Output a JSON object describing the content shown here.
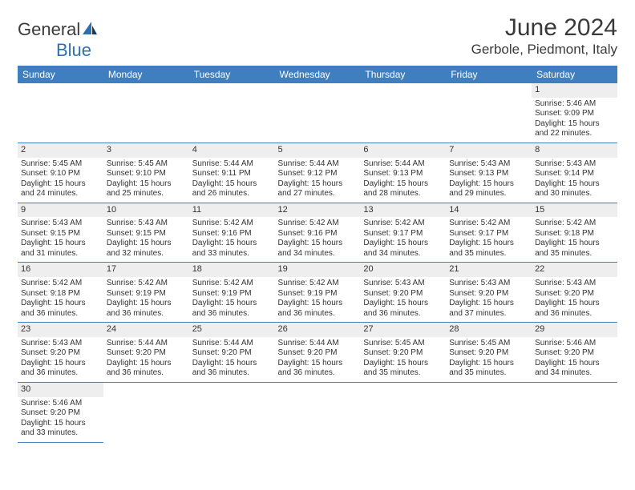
{
  "logo": {
    "textA": "General",
    "textB": "Blue"
  },
  "title": "June 2024",
  "location": "Gerbole, Piedmont, Italy",
  "colors": {
    "headerBlue": "#3f7fbf",
    "grayRow": "#eeeeee"
  },
  "dayHeaders": [
    "Sunday",
    "Monday",
    "Tuesday",
    "Wednesday",
    "Thursday",
    "Friday",
    "Saturday"
  ],
  "startOffset": 6,
  "daysInMonth": 30,
  "days": [
    {
      "n": 1,
      "sunrise": "5:46 AM",
      "sunset": "9:09 PM",
      "daylight": "15 hours and 22 minutes."
    },
    {
      "n": 2,
      "sunrise": "5:45 AM",
      "sunset": "9:10 PM",
      "daylight": "15 hours and 24 minutes."
    },
    {
      "n": 3,
      "sunrise": "5:45 AM",
      "sunset": "9:10 PM",
      "daylight": "15 hours and 25 minutes."
    },
    {
      "n": 4,
      "sunrise": "5:44 AM",
      "sunset": "9:11 PM",
      "daylight": "15 hours and 26 minutes."
    },
    {
      "n": 5,
      "sunrise": "5:44 AM",
      "sunset": "9:12 PM",
      "daylight": "15 hours and 27 minutes."
    },
    {
      "n": 6,
      "sunrise": "5:44 AM",
      "sunset": "9:13 PM",
      "daylight": "15 hours and 28 minutes."
    },
    {
      "n": 7,
      "sunrise": "5:43 AM",
      "sunset": "9:13 PM",
      "daylight": "15 hours and 29 minutes."
    },
    {
      "n": 8,
      "sunrise": "5:43 AM",
      "sunset": "9:14 PM",
      "daylight": "15 hours and 30 minutes."
    },
    {
      "n": 9,
      "sunrise": "5:43 AM",
      "sunset": "9:15 PM",
      "daylight": "15 hours and 31 minutes."
    },
    {
      "n": 10,
      "sunrise": "5:43 AM",
      "sunset": "9:15 PM",
      "daylight": "15 hours and 32 minutes."
    },
    {
      "n": 11,
      "sunrise": "5:42 AM",
      "sunset": "9:16 PM",
      "daylight": "15 hours and 33 minutes."
    },
    {
      "n": 12,
      "sunrise": "5:42 AM",
      "sunset": "9:16 PM",
      "daylight": "15 hours and 34 minutes."
    },
    {
      "n": 13,
      "sunrise": "5:42 AM",
      "sunset": "9:17 PM",
      "daylight": "15 hours and 34 minutes."
    },
    {
      "n": 14,
      "sunrise": "5:42 AM",
      "sunset": "9:17 PM",
      "daylight": "15 hours and 35 minutes."
    },
    {
      "n": 15,
      "sunrise": "5:42 AM",
      "sunset": "9:18 PM",
      "daylight": "15 hours and 35 minutes."
    },
    {
      "n": 16,
      "sunrise": "5:42 AM",
      "sunset": "9:18 PM",
      "daylight": "15 hours and 36 minutes."
    },
    {
      "n": 17,
      "sunrise": "5:42 AM",
      "sunset": "9:19 PM",
      "daylight": "15 hours and 36 minutes."
    },
    {
      "n": 18,
      "sunrise": "5:42 AM",
      "sunset": "9:19 PM",
      "daylight": "15 hours and 36 minutes."
    },
    {
      "n": 19,
      "sunrise": "5:42 AM",
      "sunset": "9:19 PM",
      "daylight": "15 hours and 36 minutes."
    },
    {
      "n": 20,
      "sunrise": "5:43 AM",
      "sunset": "9:20 PM",
      "daylight": "15 hours and 36 minutes."
    },
    {
      "n": 21,
      "sunrise": "5:43 AM",
      "sunset": "9:20 PM",
      "daylight": "15 hours and 37 minutes."
    },
    {
      "n": 22,
      "sunrise": "5:43 AM",
      "sunset": "9:20 PM",
      "daylight": "15 hours and 36 minutes."
    },
    {
      "n": 23,
      "sunrise": "5:43 AM",
      "sunset": "9:20 PM",
      "daylight": "15 hours and 36 minutes."
    },
    {
      "n": 24,
      "sunrise": "5:44 AM",
      "sunset": "9:20 PM",
      "daylight": "15 hours and 36 minutes."
    },
    {
      "n": 25,
      "sunrise": "5:44 AM",
      "sunset": "9:20 PM",
      "daylight": "15 hours and 36 minutes."
    },
    {
      "n": 26,
      "sunrise": "5:44 AM",
      "sunset": "9:20 PM",
      "daylight": "15 hours and 36 minutes."
    },
    {
      "n": 27,
      "sunrise": "5:45 AM",
      "sunset": "9:20 PM",
      "daylight": "15 hours and 35 minutes."
    },
    {
      "n": 28,
      "sunrise": "5:45 AM",
      "sunset": "9:20 PM",
      "daylight": "15 hours and 35 minutes."
    },
    {
      "n": 29,
      "sunrise": "5:46 AM",
      "sunset": "9:20 PM",
      "daylight": "15 hours and 34 minutes."
    },
    {
      "n": 30,
      "sunrise": "5:46 AM",
      "sunset": "9:20 PM",
      "daylight": "15 hours and 33 minutes."
    }
  ],
  "labels": {
    "sunrise": "Sunrise:",
    "sunset": "Sunset:",
    "daylight": "Daylight:"
  }
}
